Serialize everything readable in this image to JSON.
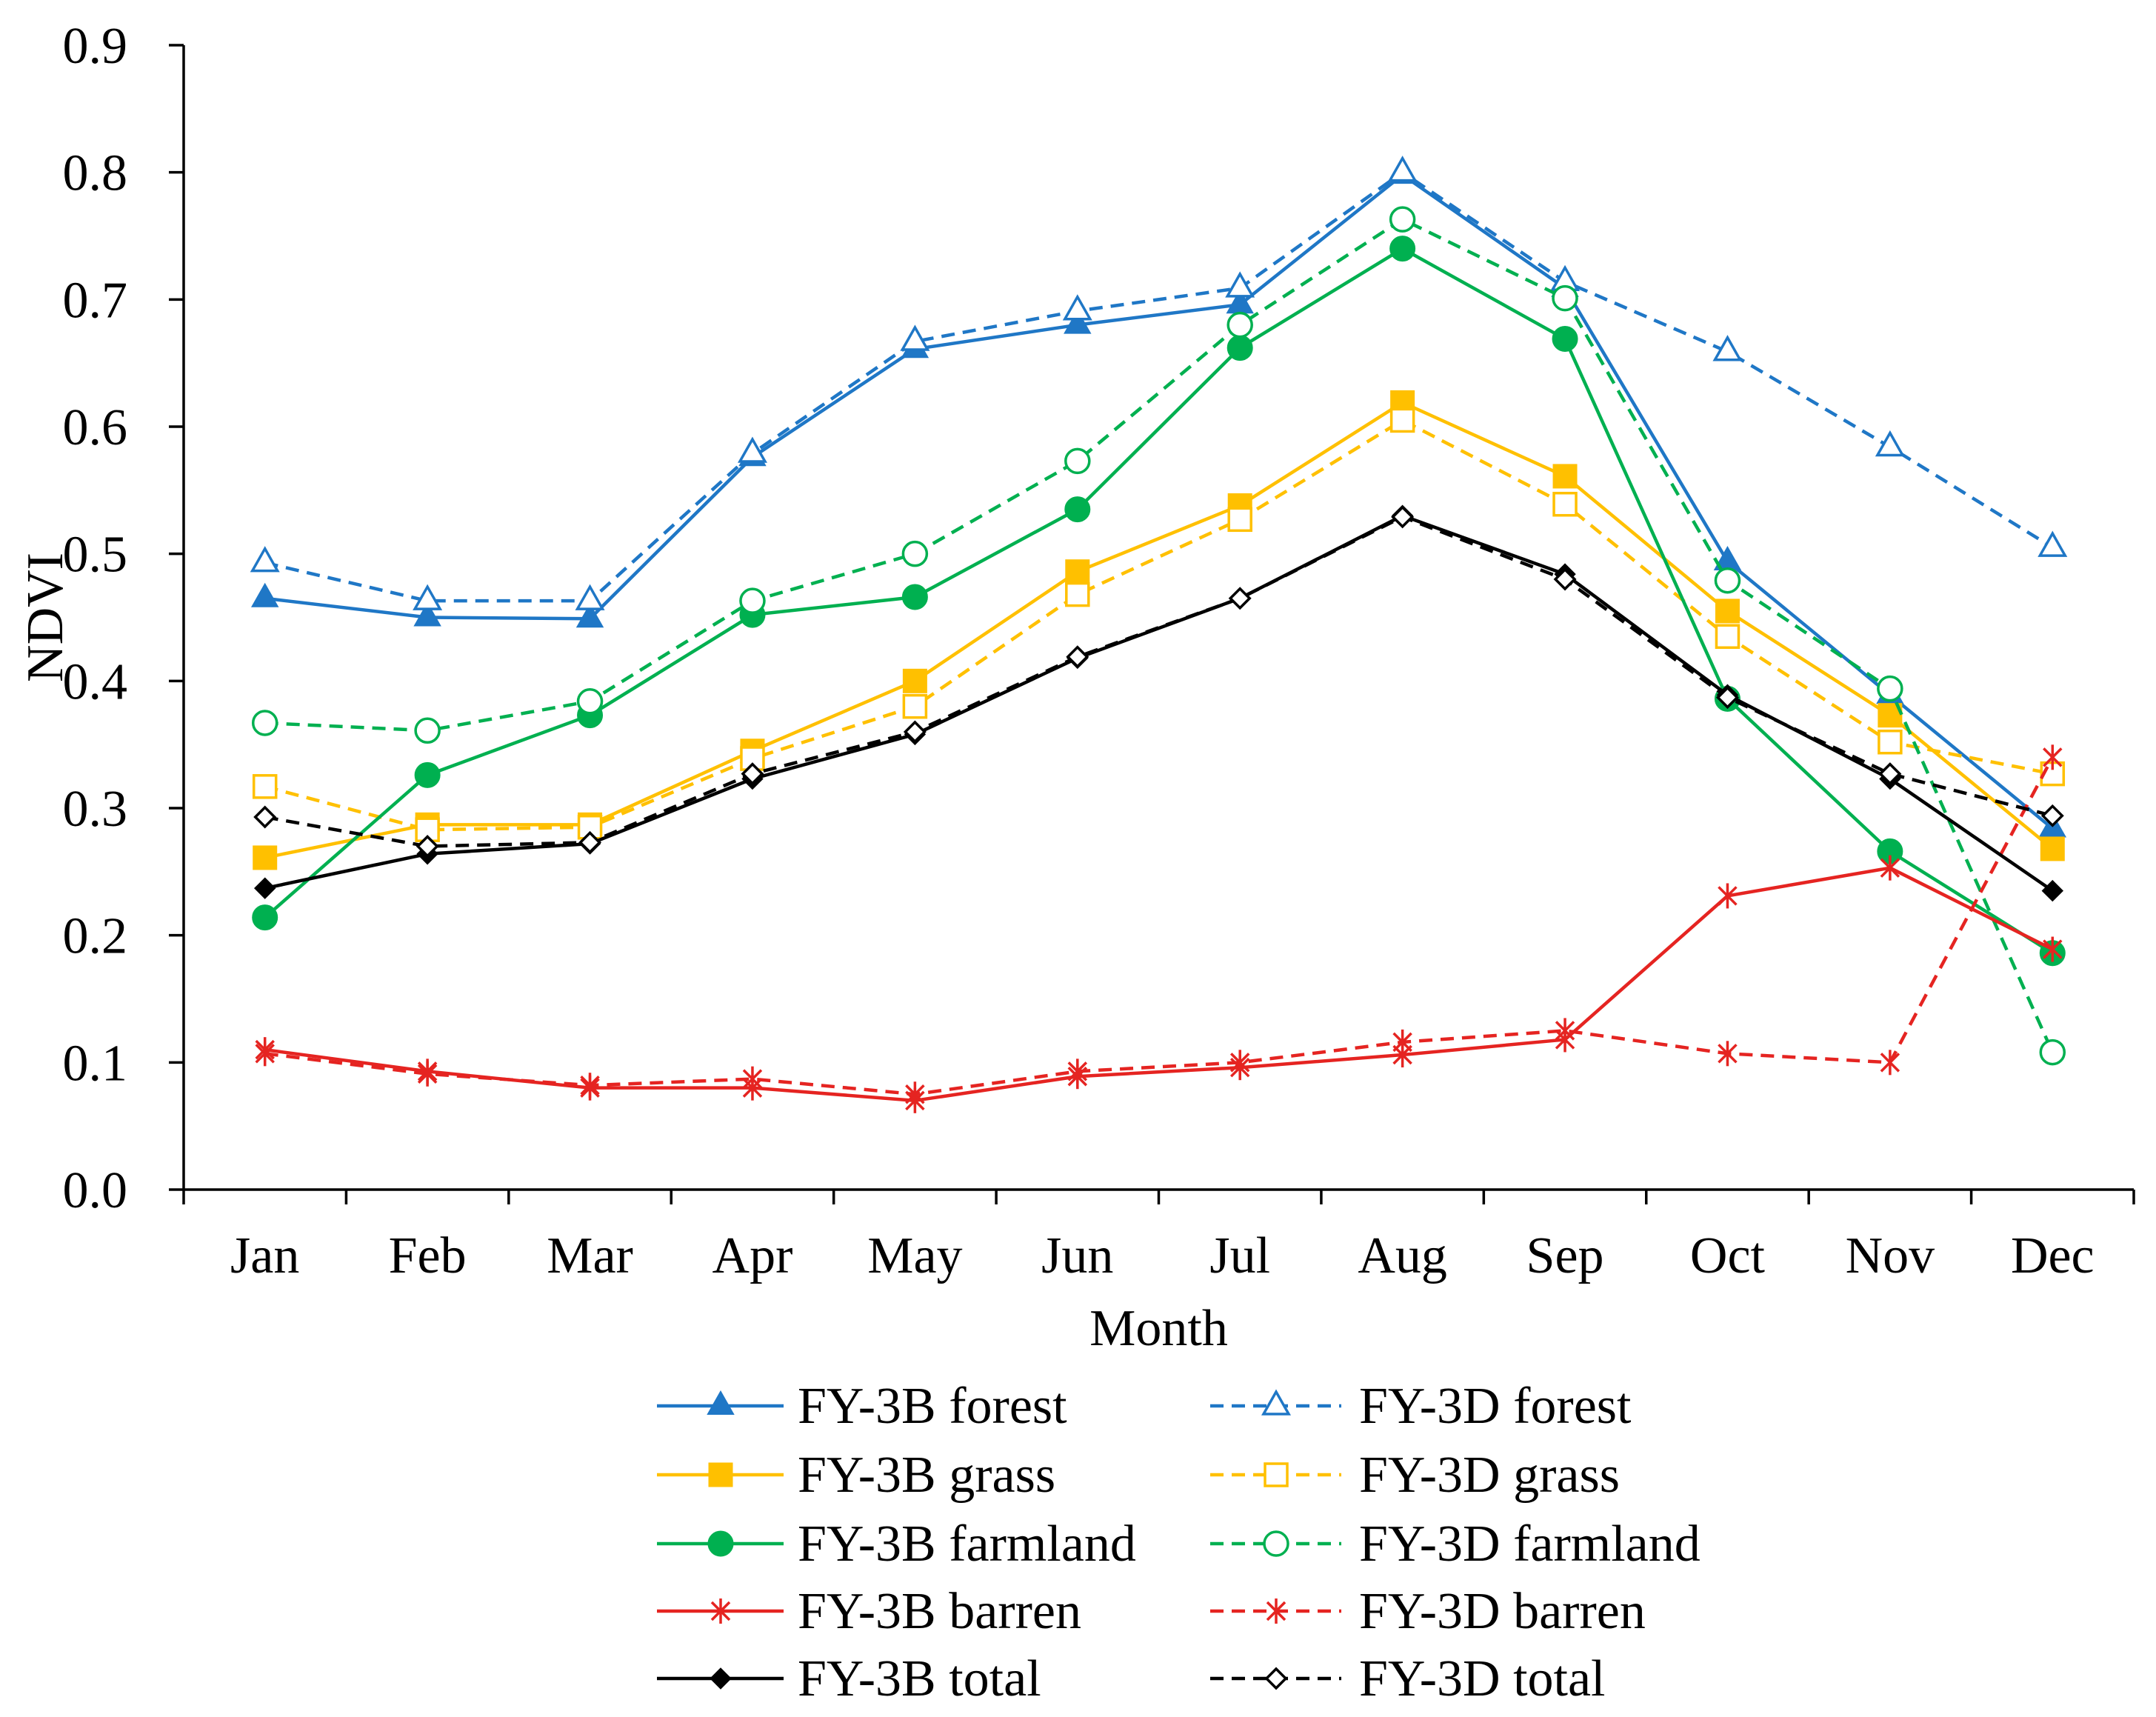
{
  "chart_data": {
    "type": "line",
    "xlabel": "Month",
    "ylabel": "NDVI",
    "categories": [
      "Jan",
      "Feb",
      "Mar",
      "Apr",
      "May",
      "Jun",
      "Jul",
      "Aug",
      "Sep",
      "Oct",
      "Nov",
      "Dec"
    ],
    "yticks": [
      "0.0",
      "0.1",
      "0.2",
      "0.3",
      "0.4",
      "0.5",
      "0.6",
      "0.7",
      "0.8",
      "0.9"
    ],
    "ylim": [
      0,
      0.9
    ],
    "grid": false,
    "legend_position": "bottom",
    "series": [
      {
        "name": "FY-3B forest",
        "color": "#1f77c6",
        "line": "solid",
        "marker": "filled-triangle",
        "values": [
          0.465,
          0.45,
          0.449,
          0.576,
          0.661,
          0.68,
          0.696,
          0.798,
          0.709,
          0.494,
          0.389,
          0.284
        ]
      },
      {
        "name": "FY-3D forest",
        "color": "#1f77c6",
        "line": "dashed",
        "marker": "open-triangle",
        "values": [
          0.493,
          0.463,
          0.463,
          0.579,
          0.667,
          0.691,
          0.709,
          0.8,
          0.714,
          0.659,
          0.584,
          0.505
        ]
      },
      {
        "name": "FY-3B grass",
        "color": "#ffc000",
        "line": "solid",
        "marker": "filled-square",
        "values": [
          0.261,
          0.287,
          0.287,
          0.345,
          0.4,
          0.486,
          0.538,
          0.619,
          0.561,
          0.455,
          0.373,
          0.268
        ]
      },
      {
        "name": "FY-3D grass",
        "color": "#ffc000",
        "line": "dashed",
        "marker": "open-square",
        "values": [
          0.317,
          0.283,
          0.285,
          0.339,
          0.38,
          0.468,
          0.527,
          0.605,
          0.539,
          0.435,
          0.352,
          0.327
        ]
      },
      {
        "name": "FY-3B farmland",
        "color": "#00b050",
        "line": "solid",
        "marker": "filled-circle",
        "values": [
          0.214,
          0.326,
          0.373,
          0.452,
          0.466,
          0.535,
          0.662,
          0.74,
          0.669,
          0.386,
          0.266,
          0.186
        ]
      },
      {
        "name": "FY-3D farmland",
        "color": "#00b050",
        "line": "dashed",
        "marker": "open-circle",
        "values": [
          0.367,
          0.361,
          0.384,
          0.463,
          0.5,
          0.573,
          0.68,
          0.763,
          0.701,
          0.479,
          0.394,
          0.108
        ]
      },
      {
        "name": "FY-3B barren",
        "color": "#e52421",
        "line": "solid",
        "marker": "asterisk",
        "values": [
          0.11,
          0.093,
          0.08,
          0.08,
          0.07,
          0.089,
          0.096,
          0.106,
          0.118,
          0.231,
          0.253,
          0.189
        ]
      },
      {
        "name": "FY-3D barren",
        "color": "#e52421",
        "line": "dashed",
        "marker": "asterisk",
        "values": [
          0.107,
          0.091,
          0.082,
          0.087,
          0.075,
          0.093,
          0.1,
          0.116,
          0.125,
          0.107,
          0.1,
          0.34
        ]
      },
      {
        "name": "FY-3B total",
        "color": "#000000",
        "line": "solid",
        "marker": "filled-diamond",
        "values": [
          0.237,
          0.264,
          0.272,
          0.323,
          0.358,
          0.418,
          0.465,
          0.53,
          0.484,
          0.389,
          0.323,
          0.235
        ]
      },
      {
        "name": "FY-3D total",
        "color": "#000000",
        "line": "dashed",
        "marker": "open-diamond",
        "values": [
          0.293,
          0.27,
          0.273,
          0.327,
          0.36,
          0.419,
          0.465,
          0.529,
          0.48,
          0.387,
          0.327,
          0.294
        ]
      }
    ]
  }
}
